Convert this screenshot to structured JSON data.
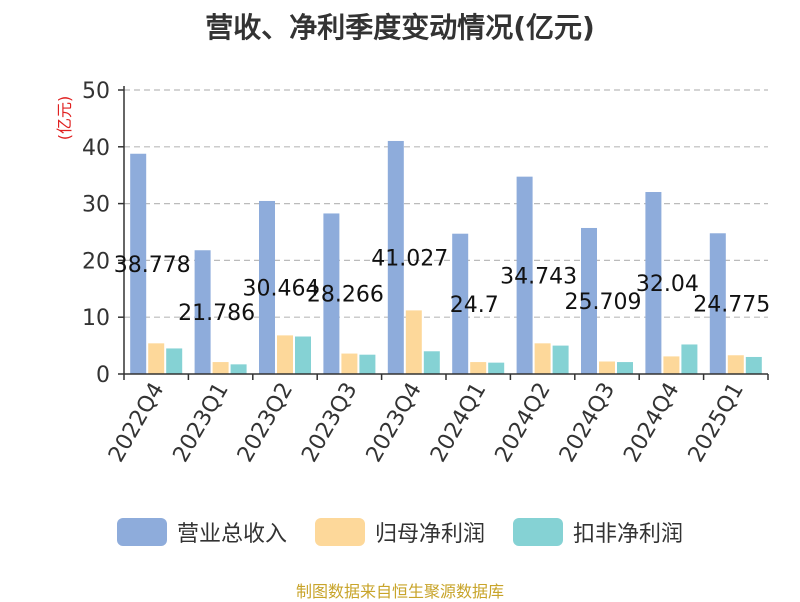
{
  "chart_data": {
    "type": "bar",
    "title": "营收、净利季度变动情况(亿元)",
    "ylabel": "(亿元)",
    "ylim": [
      0,
      50
    ],
    "yticks": [
      0,
      10,
      20,
      30,
      40,
      50
    ],
    "grid": true,
    "legend_position": "bottom",
    "categories": [
      "2022Q4",
      "2023Q1",
      "2023Q2",
      "2023Q3",
      "2023Q4",
      "2024Q1",
      "2024Q2",
      "2024Q3",
      "2024Q4",
      "2025Q1"
    ],
    "series": [
      {
        "name": "营业总收入",
        "color": "#8eacdb",
        "values": [
          38.778,
          21.786,
          30.464,
          28.266,
          41.027,
          24.7,
          34.743,
          25.709,
          32.04,
          24.775
        ],
        "labels": [
          "38.778",
          "21.786",
          "30.464",
          "28.266",
          "41.027",
          "24.7",
          "34.743",
          "25.709",
          "32.04",
          "24.775"
        ]
      },
      {
        "name": "归母净利润",
        "color": "#fdd89a",
        "values": [
          5.4,
          2.1,
          6.8,
          3.6,
          11.2,
          2.1,
          5.4,
          2.2,
          3.1,
          3.3
        ]
      },
      {
        "name": "扣非净利润",
        "color": "#85d2d4",
        "values": [
          4.5,
          1.7,
          6.6,
          3.4,
          4.0,
          2.0,
          5.0,
          2.1,
          5.2,
          3.0
        ]
      }
    ]
  },
  "source": "制图数据来自恒生聚源数据库"
}
